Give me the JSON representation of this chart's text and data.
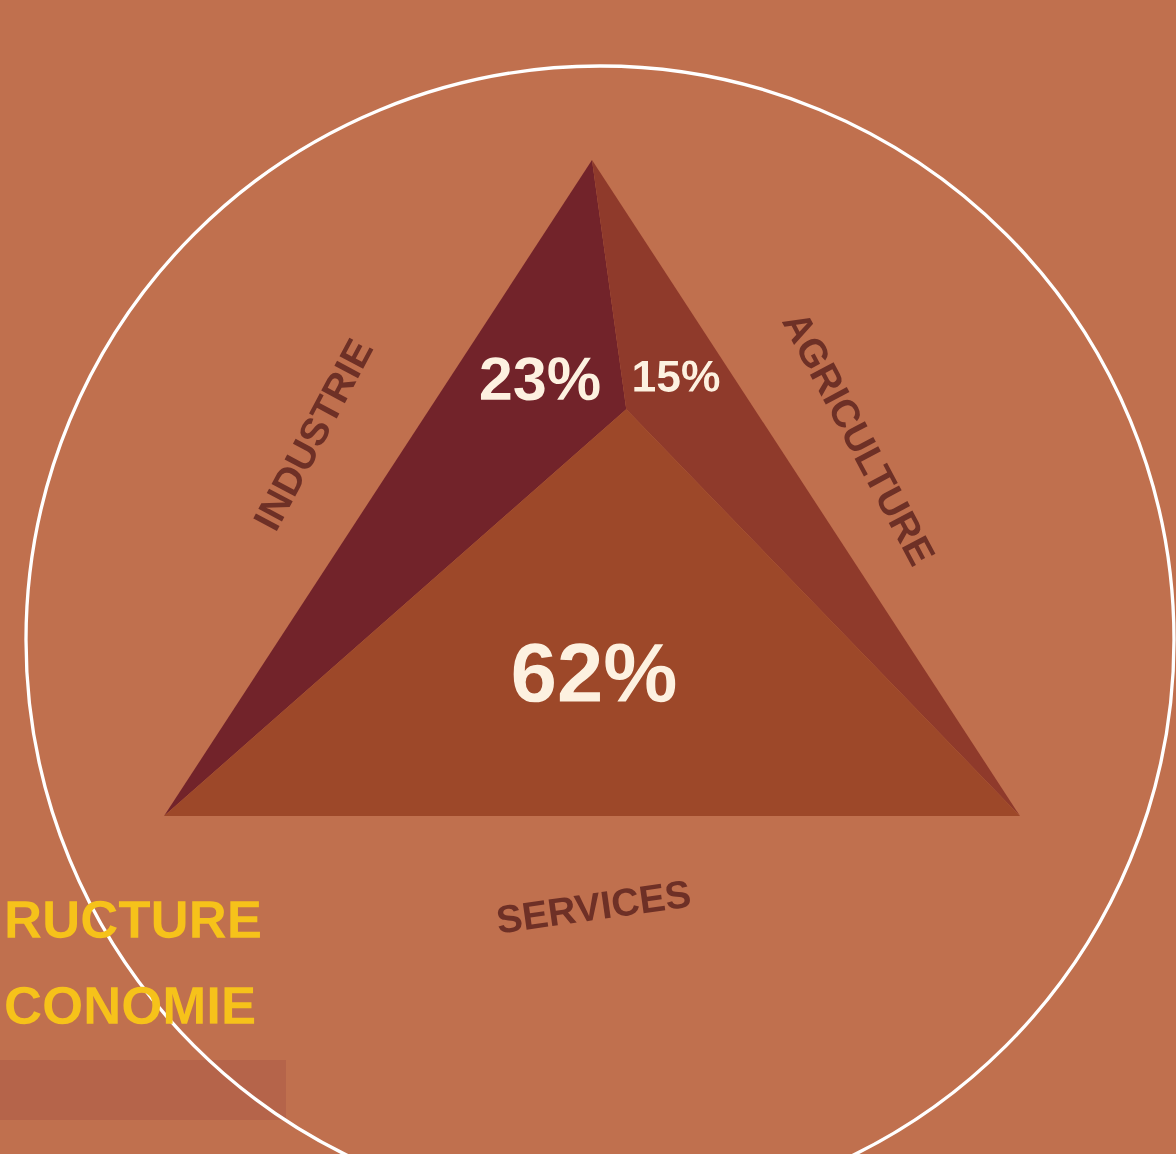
{
  "chart_data": {
    "type": "other",
    "categories": [
      "INDUSTRIE",
      "AGRICULTURE",
      "SERVICES"
    ],
    "values": [
      23,
      15,
      62
    ],
    "value_labels": [
      "23%",
      "15%",
      "62%"
    ],
    "colors": [
      "#72232a",
      "#8f3a2b",
      "#9d4829"
    ],
    "annotations": [
      "RUCTURE",
      "CONOMIE"
    ]
  }
}
